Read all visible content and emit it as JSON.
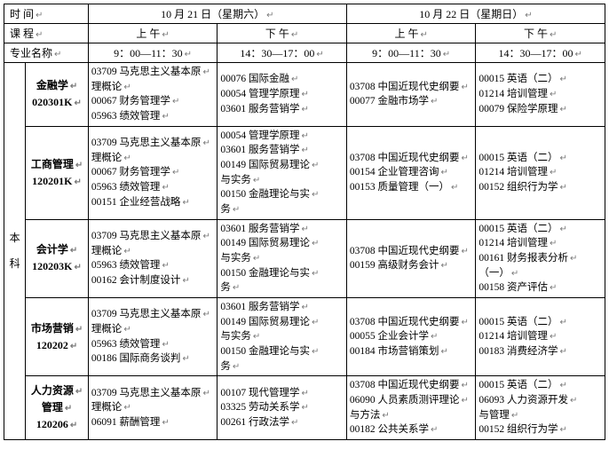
{
  "header": {
    "time_label": "时 间",
    "day1": "10 月 21 日（星期六）",
    "day2": "10 月 22 日（星期日）",
    "course_label": "课 程",
    "am": "上 午",
    "pm": "下 午",
    "major_label": "专业名称",
    "slot1": "9：00—11：30",
    "slot2": "14：30—17：00",
    "slot3": "9：00—11：30",
    "slot4": "14：30—17：00"
  },
  "section_label_1": "本",
  "section_label_2": "科",
  "rows": [
    {
      "major": [
        "金融学",
        "020301K"
      ],
      "c1": [
        "03709 马克思主义基本原",
        "理概论",
        "00067 财务管理学",
        "05963 绩效管理"
      ],
      "c2": [
        "00076 国际金融",
        "00054 管理学原理",
        "03601 服务营销学"
      ],
      "c3": [
        "03708 中国近现代史纲要",
        "00077 金融市场学"
      ],
      "c4": [
        "00015 英语（二）",
        "01214 培训管理",
        "00079 保险学原理"
      ]
    },
    {
      "major": [
        "工商管理",
        "120201K"
      ],
      "c1": [
        "03709 马克思主义基本原",
        "理概论",
        "00067 财务管理学",
        "05963 绩效管理",
        "00151 企业经营战略"
      ],
      "c2": [
        "00054 管理学原理",
        "03601 服务营销学",
        "00149 国际贸易理论",
        "与实务",
        "00150 金融理论与实",
        "务"
      ],
      "c3": [
        "03708 中国近现代史纲要",
        "00154 企业管理咨询",
        "00153 质量管理（一）"
      ],
      "c4": [
        "00015 英语（二）",
        "01214 培训管理",
        "00152 组织行为学"
      ]
    },
    {
      "major": [
        "会计学",
        "120203K"
      ],
      "c1": [
        "03709 马克思主义基本原",
        "理概论",
        "05963 绩效管理",
        "00162 会计制度设计"
      ],
      "c2": [
        "03601 服务营销学",
        "00149 国际贸易理论",
        "与实务",
        "00150 金融理论与实",
        "务"
      ],
      "c3": [
        "03708 中国近现代史纲要",
        "00159 高级财务会计"
      ],
      "c4": [
        "00015 英语（二）",
        "01214 培训管理",
        "00161 财务报表分析",
        "（一）",
        "00158 资产评估"
      ]
    },
    {
      "major": [
        "市场营销",
        "120202"
      ],
      "c1": [
        "03709 马克思主义基本原",
        "理概论",
        "05963 绩效管理",
        "00186 国际商务谈判"
      ],
      "c2": [
        "03601 服务营销学",
        "00149 国际贸易理论",
        "与实务",
        "00150 金融理论与实",
        "务"
      ],
      "c3": [
        "03708 中国近现代史纲要",
        "00055 企业会计学",
        "00184 市场营销策划"
      ],
      "c4": [
        "00015 英语（二）",
        "01214 培训管理",
        "00183 消费经济学"
      ]
    },
    {
      "major": [
        "人力资源",
        "管理",
        "120206"
      ],
      "c1": [
        "03709 马克思主义基本原",
        "理概论",
        "06091 薪酬管理"
      ],
      "c2": [
        "00107 现代管理学",
        "03325 劳动关系学",
        "00261 行政法学"
      ],
      "c3": [
        "03708 中国近现代史纲要",
        "06090 人员素质测评理论",
        "与方法",
        "00182 公共关系学"
      ],
      "c4": [
        "00015 英语（二）",
        "06093 人力资源开发",
        "与管理",
        "00152 组织行为学"
      ]
    }
  ]
}
